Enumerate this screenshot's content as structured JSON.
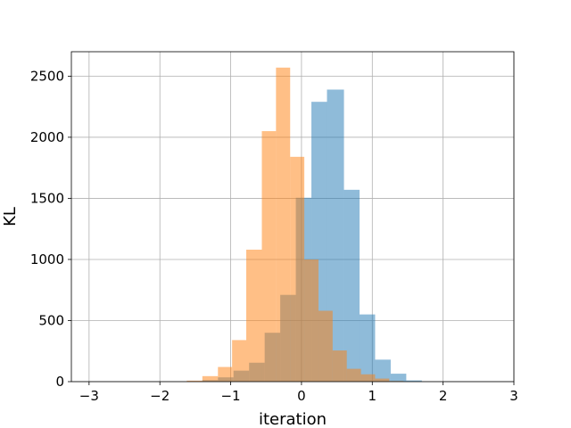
{
  "chart_data": {
    "type": "bar",
    "title": "",
    "xlabel": "iteration",
    "ylabel": "KL",
    "xlim": [
      -3.25,
      3.0
    ],
    "ylim": [
      0,
      2700
    ],
    "grid": true,
    "x_ticks": [
      -3,
      -2,
      -1,
      0,
      1,
      2,
      3
    ],
    "x_tick_labels": [
      "−3",
      "−2",
      "−1",
      "0",
      "1",
      "2",
      "3"
    ],
    "y_ticks": [
      0,
      500,
      1000,
      1500,
      2000,
      2500
    ],
    "y_tick_labels": [
      "0",
      "500",
      "1000",
      "1500",
      "2000",
      "2500"
    ],
    "series": [
      {
        "color": "#1f77b4",
        "opacity": 0.5,
        "bins": [
          {
            "x0": -1.62,
            "x1": -1.4,
            "count": 3
          },
          {
            "x0": -1.4,
            "x1": -1.18,
            "count": 12
          },
          {
            "x0": -1.18,
            "x1": -0.96,
            "count": 35
          },
          {
            "x0": -0.96,
            "x1": -0.74,
            "count": 90
          },
          {
            "x0": -0.74,
            "x1": -0.52,
            "count": 155
          },
          {
            "x0": -0.52,
            "x1": -0.3,
            "count": 400
          },
          {
            "x0": -0.3,
            "x1": -0.08,
            "count": 710
          },
          {
            "x0": -0.08,
            "x1": 0.14,
            "count": 1505
          },
          {
            "x0": 0.14,
            "x1": 0.36,
            "count": 2290
          },
          {
            "x0": 0.36,
            "x1": 0.6,
            "count": 2390
          },
          {
            "x0": 0.6,
            "x1": 0.82,
            "count": 1570
          },
          {
            "x0": 0.82,
            "x1": 1.04,
            "count": 550
          },
          {
            "x0": 1.04,
            "x1": 1.26,
            "count": 180
          },
          {
            "x0": 1.26,
            "x1": 1.48,
            "count": 65
          },
          {
            "x0": 1.48,
            "x1": 1.7,
            "count": 10
          }
        ]
      },
      {
        "color": "#ff7f0e",
        "opacity": 0.5,
        "bins": [
          {
            "x0": -1.62,
            "x1": -1.4,
            "count": 8
          },
          {
            "x0": -1.4,
            "x1": -1.18,
            "count": 45
          },
          {
            "x0": -1.18,
            "x1": -0.98,
            "count": 120
          },
          {
            "x0": -0.98,
            "x1": -0.78,
            "count": 340
          },
          {
            "x0": -0.78,
            "x1": -0.56,
            "count": 1080
          },
          {
            "x0": -0.56,
            "x1": -0.36,
            "count": 2050
          },
          {
            "x0": -0.36,
            "x1": -0.16,
            "count": 2570
          },
          {
            "x0": -0.16,
            "x1": 0.04,
            "count": 1840
          },
          {
            "x0": 0.04,
            "x1": 0.24,
            "count": 1000
          },
          {
            "x0": 0.24,
            "x1": 0.44,
            "count": 580
          },
          {
            "x0": 0.44,
            "x1": 0.64,
            "count": 255
          },
          {
            "x0": 0.64,
            "x1": 0.84,
            "count": 105
          },
          {
            "x0": 0.84,
            "x1": 1.04,
            "count": 60
          },
          {
            "x0": 1.04,
            "x1": 1.24,
            "count": 25
          },
          {
            "x0": 1.24,
            "x1": 1.44,
            "count": 5
          }
        ]
      }
    ]
  }
}
